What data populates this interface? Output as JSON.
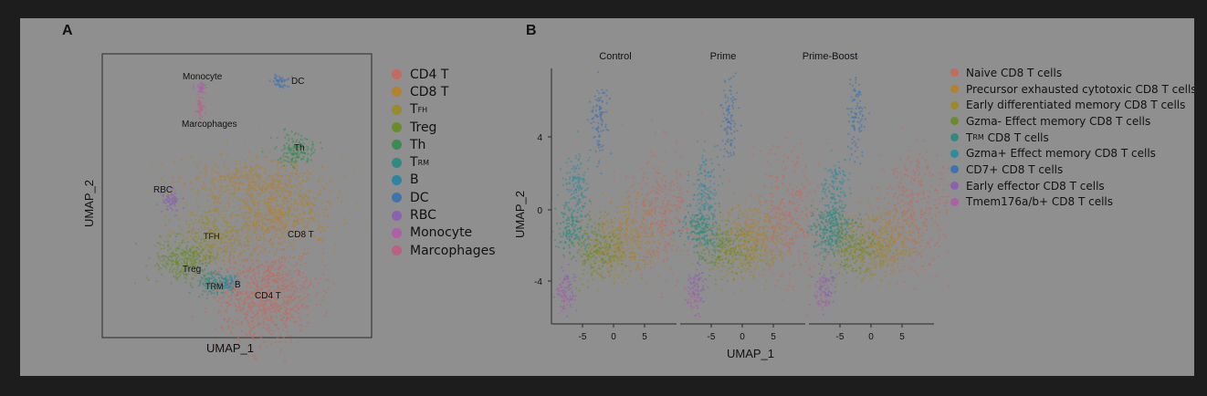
{
  "panel_a": {
    "letter": "A",
    "xlabel": "UMAP_1",
    "ylabel": "UMAP_2",
    "cluster_labels": [
      "Monocyte",
      "DC",
      "Marcophages",
      "Th",
      "RBC",
      "TFH",
      "CD8 T",
      "Treg",
      "TRM",
      "B",
      "CD4 T"
    ],
    "legend": [
      {
        "label": "CD4 T",
        "sub": "",
        "color": "#c46a5e"
      },
      {
        "label": "CD8 T",
        "sub": "",
        "color": "#b5812a"
      },
      {
        "label": "T",
        "sub": "FH",
        "color": "#9a8a2a"
      },
      {
        "label": "Treg",
        "sub": "",
        "color": "#6a8c2c"
      },
      {
        "label": "Th",
        "sub": "",
        "color": "#3a8c52"
      },
      {
        "label": "T",
        "sub": "RM",
        "color": "#2f8a80"
      },
      {
        "label": "B",
        "sub": "",
        "color": "#2a84a2"
      },
      {
        "label": "DC",
        "sub": "",
        "color": "#3d74b0"
      },
      {
        "label": "RBC",
        "sub": "",
        "color": "#8a60b0"
      },
      {
        "label": "Monocyte",
        "sub": "",
        "color": "#b05ea8"
      },
      {
        "label": "Marcophages",
        "sub": "",
        "color": "#bd5f87"
      }
    ]
  },
  "panel_b": {
    "letter": "B",
    "xlabel": "UMAP_1",
    "ylabel": "UMAP_2",
    "facets": [
      "Control",
      "Prime",
      "Prime-Boost"
    ],
    "x_ticks": [
      "-5",
      "0",
      "5"
    ],
    "y_ticks": [
      "4",
      "0",
      "-4"
    ],
    "legend": [
      {
        "label": "Naive CD8 T cells",
        "sub": "",
        "color": "#c46a5e"
      },
      {
        "label": "Precursor exhausted cytotoxic CD8 T cells",
        "sub": "",
        "color": "#b5812a"
      },
      {
        "label": "Early differentiated memory CD8 T cells",
        "sub": "",
        "color": "#9a8a2a"
      },
      {
        "label": "Gzma- Effect memory CD8 T cells",
        "sub": "",
        "color": "#6a8c2c"
      },
      {
        "label": "T",
        "sub": "RM",
        "rest": " CD8 T cells",
        "color": "#2f8a80"
      },
      {
        "label": "Gzma+ Effect memory CD8 T cells",
        "sub": "",
        "color": "#2f8ca0"
      },
      {
        "label": "CD7+ CD8 T cells",
        "sub": "",
        "color": "#3d74b0"
      },
      {
        "label": "Early effector CD8 T cells",
        "sub": "",
        "color": "#8a60b0"
      },
      {
        "label": "Tmem176a/b+ CD8 T cells",
        "sub": "",
        "color": "#b05ea8"
      }
    ]
  },
  "chart_data": [
    {
      "type": "scatter",
      "title": "A",
      "xlabel": "UMAP_1",
      "ylabel": "UMAP_2",
      "grid": false,
      "legend_position": "right",
      "series": [
        {
          "name": "CD4 T"
        },
        {
          "name": "CD8 T"
        },
        {
          "name": "TFH"
        },
        {
          "name": "Treg"
        },
        {
          "name": "Th"
        },
        {
          "name": "TRM"
        },
        {
          "name": "B"
        },
        {
          "name": "DC"
        },
        {
          "name": "RBC"
        },
        {
          "name": "Monocyte"
        },
        {
          "name": "Marcophages"
        }
      ]
    },
    {
      "type": "scatter",
      "title": "B",
      "facets": [
        "Control",
        "Prime",
        "Prime-Boost"
      ],
      "xlabel": "UMAP_1",
      "ylabel": "UMAP_2",
      "x_ticks": [
        -5,
        0,
        5
      ],
      "y_ticks": [
        4,
        0,
        -4
      ],
      "grid": false,
      "legend_position": "right",
      "series": [
        {
          "name": "Naive CD8 T cells"
        },
        {
          "name": "Precursor exhausted cytotoxic CD8 T cells"
        },
        {
          "name": "Early differentiated memory CD8 T cells"
        },
        {
          "name": "Gzma- Effect memory CD8 T cells"
        },
        {
          "name": "TRM CD8 T cells"
        },
        {
          "name": "Gzma+ Effect memory CD8 T cells"
        },
        {
          "name": "CD7+ CD8 T cells"
        },
        {
          "name": "Early effector CD8 T cells"
        },
        {
          "name": "Tmem176a/b+ CD8 T cells"
        }
      ]
    }
  ]
}
